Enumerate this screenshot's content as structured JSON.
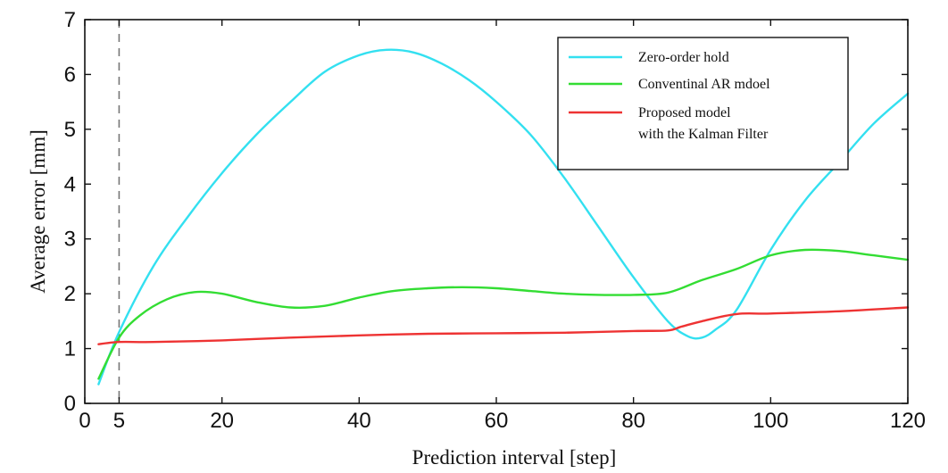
{
  "chart_data": {
    "type": "line",
    "title": "",
    "xlabel": "Prediction interval [step]",
    "ylabel": "Average error [mm]",
    "xlim": [
      0,
      120
    ],
    "ylim": [
      0,
      7
    ],
    "xticks": [
      0,
      5,
      20,
      40,
      60,
      80,
      100,
      120
    ],
    "yticks": [
      0,
      1,
      2,
      3,
      4,
      5,
      6,
      7
    ],
    "grid": false,
    "legend_position": "top-right",
    "reference_line": {
      "x": 5,
      "style": "dashed"
    },
    "series": [
      {
        "name": "Zero-order hold",
        "color": "#33e0f0",
        "x": [
          2,
          5,
          10,
          15,
          20,
          25,
          30,
          35,
          40,
          44,
          48,
          52,
          56,
          60,
          65,
          70,
          75,
          80,
          85,
          88,
          90,
          92,
          95,
          100,
          105,
          110,
          115,
          120
        ],
        "y": [
          0.35,
          1.3,
          2.5,
          3.4,
          4.2,
          4.9,
          5.5,
          6.05,
          6.35,
          6.45,
          6.4,
          6.2,
          5.9,
          5.5,
          4.9,
          4.1,
          3.2,
          2.3,
          1.5,
          1.22,
          1.2,
          1.35,
          1.7,
          2.8,
          3.7,
          4.4,
          5.1,
          5.65
        ]
      },
      {
        "name": "Conventinal AR mdoel",
        "color": "#33dd33",
        "x": [
          2,
          5,
          8,
          12,
          16,
          20,
          25,
          30,
          35,
          40,
          45,
          50,
          55,
          60,
          65,
          70,
          75,
          80,
          85,
          90,
          95,
          100,
          105,
          110,
          115,
          120
        ],
        "y": [
          0.45,
          1.2,
          1.6,
          1.9,
          2.03,
          2.0,
          1.85,
          1.75,
          1.78,
          1.93,
          2.05,
          2.1,
          2.12,
          2.1,
          2.05,
          2.0,
          1.98,
          1.98,
          2.02,
          2.25,
          2.45,
          2.7,
          2.8,
          2.78,
          2.7,
          2.62
        ]
      },
      {
        "name": "Proposed model\nwith the Kalman Filter",
        "color": "#ee3333",
        "x": [
          2,
          5,
          10,
          20,
          30,
          40,
          50,
          60,
          70,
          80,
          85,
          87,
          90,
          95,
          100,
          110,
          120
        ],
        "y": [
          1.08,
          1.12,
          1.12,
          1.15,
          1.2,
          1.24,
          1.27,
          1.28,
          1.29,
          1.32,
          1.33,
          1.4,
          1.5,
          1.63,
          1.64,
          1.68,
          1.75
        ]
      }
    ]
  }
}
